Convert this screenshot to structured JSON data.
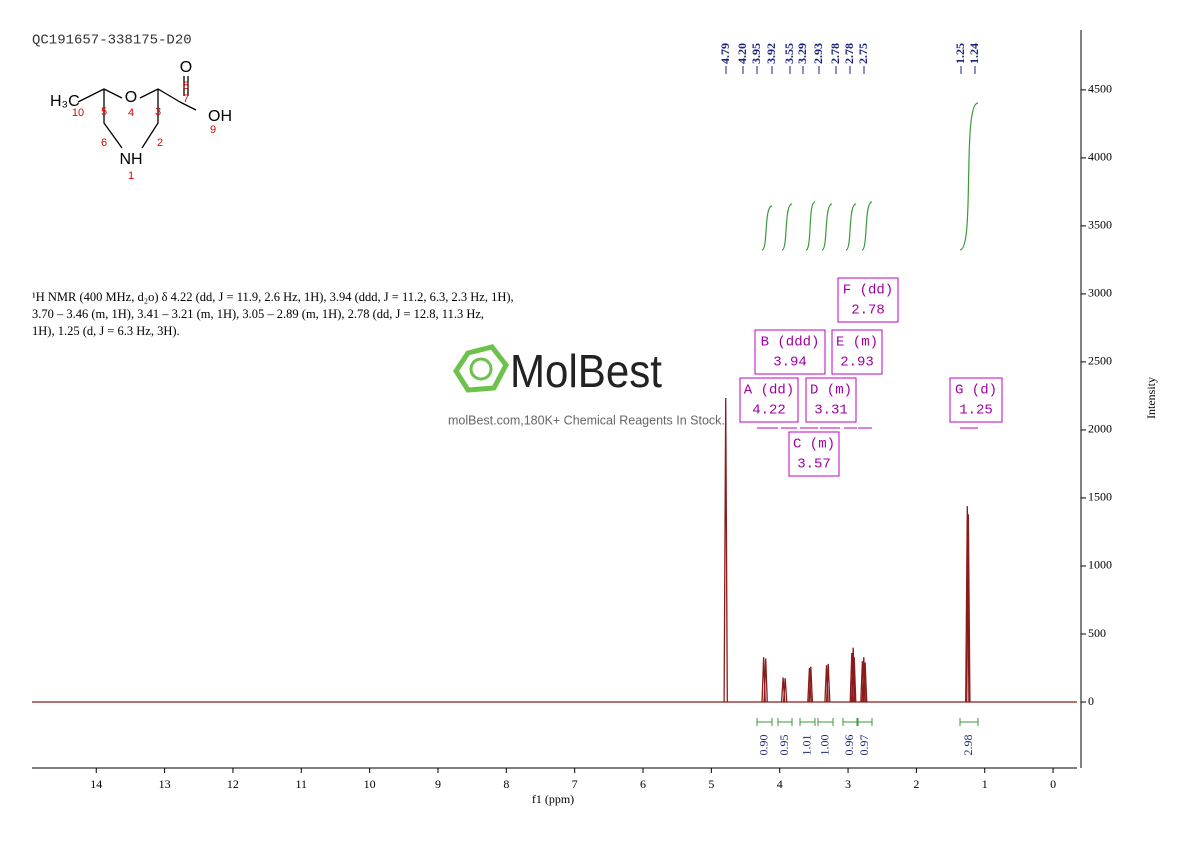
{
  "header": {
    "title": "QC191657-338175-D20"
  },
  "structure": {
    "atoms": [
      "H₃C",
      "O",
      "O",
      "OH",
      "NH"
    ],
    "numbers": [
      "10",
      "5",
      "4",
      "3",
      "7",
      "8",
      "9",
      "2",
      "6",
      "1"
    ]
  },
  "description": [
    "¹H NMR (400 MHz, d₂o) δ 4.22 (dd, J = 11.9, 2.6 Hz, 1H), 3.94 (ddd, J = 11.2, 6.3, 2.3 Hz, 1H),",
    "3.70 – 3.46 (m, 1H), 3.41 – 3.21 (m, 1H), 3.05 – 2.89 (m, 1H), 2.78 (dd, J = 12.8, 11.3 Hz,",
    "1H), 1.25 (d, J = 6.3 Hz, 3H)."
  ],
  "watermark": {
    "brand": "MolBest",
    "tagline": "molBest.com,180K+ Chemical Reagents In Stock."
  },
  "chart_data": {
    "type": "nmr",
    "xlabel": "f1 (ppm)",
    "ylabel": "Intensity",
    "xlim": [
      14.94,
      -0.35
    ],
    "xticks": [
      14,
      13,
      12,
      11,
      10,
      9,
      8,
      7,
      6,
      5,
      4,
      3,
      2,
      1,
      0
    ],
    "ylim": [
      -485,
      4940
    ],
    "yticks": [
      0,
      500,
      1000,
      1500,
      2000,
      2500,
      3000,
      3500,
      4000,
      4500
    ],
    "color": "#8b1a1a",
    "peaks": {
      "x": [
        4.79,
        4.235,
        4.205,
        3.95,
        3.92,
        3.565,
        3.545,
        3.315,
        3.29,
        2.945,
        2.925,
        2.91,
        2.79,
        2.77,
        2.75,
        1.255,
        1.24
      ],
      "values": [
        2235,
        330,
        320,
        180,
        175,
        250,
        260,
        270,
        280,
        360,
        400,
        330,
        300,
        330,
        290,
        1440,
        1380
      ]
    },
    "peak_labels": [
      "4.79",
      "4.20",
      "3.95",
      "3.92",
      "3.55",
      "3.29",
      "2.93",
      "2.78",
      "2.78",
      "2.75",
      "1.25",
      "1.24"
    ],
    "multiplets": [
      {
        "label": "A (dd)",
        "shift": 4.22
      },
      {
        "label": "B (ddd)",
        "shift": 3.94
      },
      {
        "label": "C (m)",
        "shift": 3.57
      },
      {
        "label": "D (m)",
        "shift": 3.31
      },
      {
        "label": "E (m)",
        "shift": 2.93
      },
      {
        "label": "F (dd)",
        "shift": 2.78
      },
      {
        "label": "G (d)",
        "shift": 1.25
      }
    ],
    "integrals": {
      "values": [
        0.9,
        0.95,
        1.01,
        1.0,
        0.96,
        0.97,
        2.98
      ],
      "value_labels": [
        "0.90",
        "0.95",
        "1.01",
        "1.00",
        "0.96",
        "0.97",
        "2.98"
      ]
    }
  }
}
